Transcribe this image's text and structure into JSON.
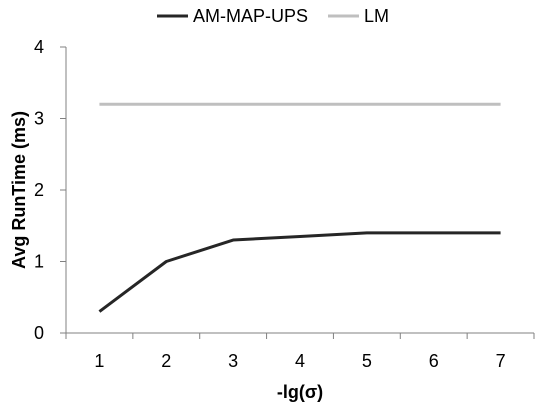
{
  "chart_data": {
    "type": "line",
    "title": "",
    "xlabel": "-lg(σ)",
    "ylabel": "Avg RunTime (ms)",
    "x": [
      1,
      2,
      3,
      4,
      5,
      6,
      7
    ],
    "x_tick_labels": [
      "1",
      "2",
      "3",
      "4",
      "5",
      "6",
      "7"
    ],
    "y_tick_labels": [
      "0",
      "1",
      "2",
      "3",
      "4"
    ],
    "xlim": [
      0.5,
      7.5
    ],
    "ylim": [
      0,
      4
    ],
    "grid": false,
    "legend_position": "top",
    "series": [
      {
        "name": "AM-MAP-UPS",
        "color": "#262626",
        "values": [
          0.3,
          1.0,
          1.3,
          1.35,
          1.4,
          1.4,
          1.4
        ]
      },
      {
        "name": "LM",
        "color": "#bfbfbf",
        "values": [
          3.2,
          3.2,
          3.2,
          3.2,
          3.2,
          3.2,
          3.2
        ]
      }
    ]
  }
}
